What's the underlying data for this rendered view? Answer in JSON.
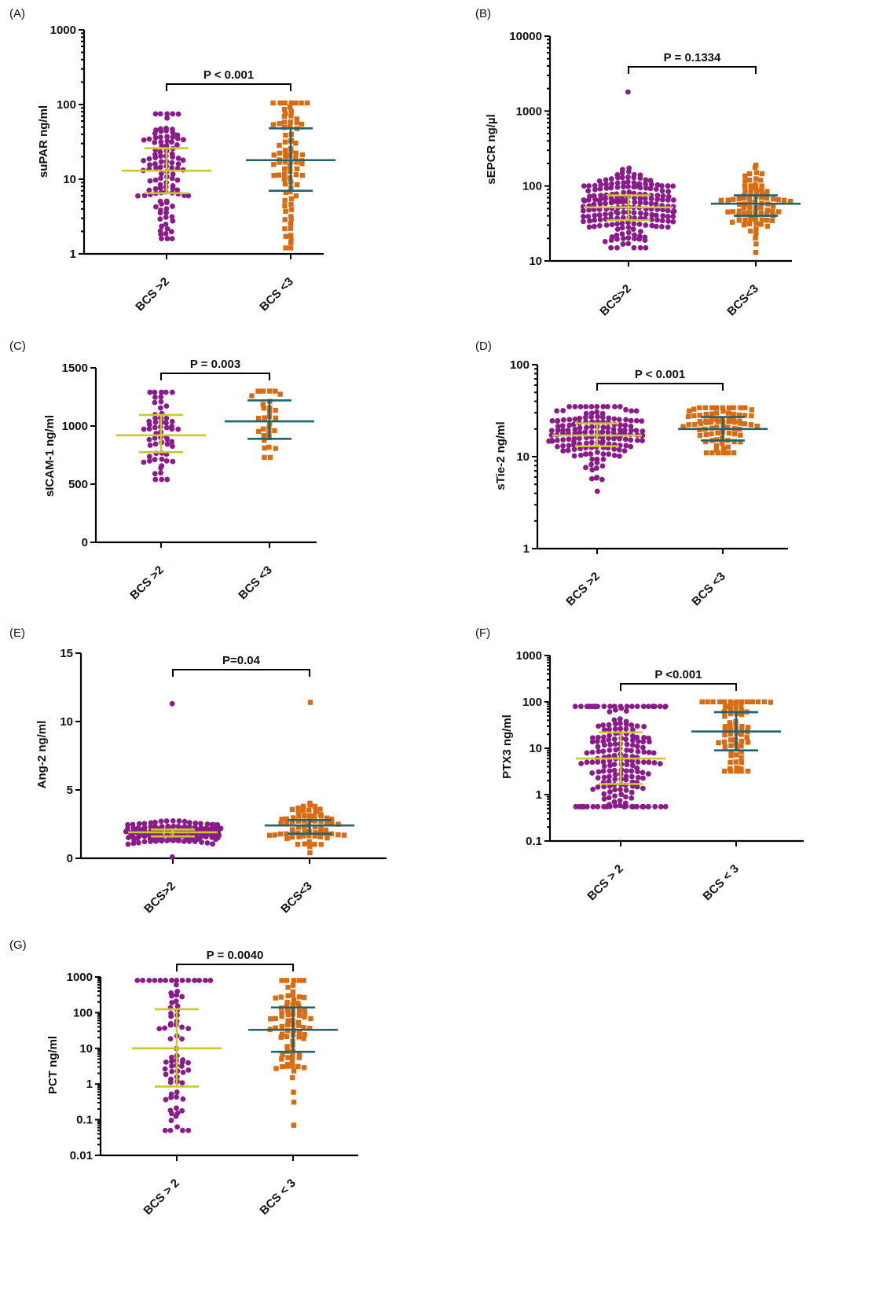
{
  "chart_data": [
    {
      "type": "scatter",
      "panel": "(A)",
      "ylabel": "suPAR ng/ml",
      "scale": "log",
      "ylim": [
        1,
        1000
      ],
      "ticks": [
        1,
        10,
        100,
        1000
      ],
      "tick_labels": [
        "1",
        "10",
        "100",
        "1000"
      ],
      "categories": [
        "BCS >2",
        "BCS <3"
      ],
      "pvalue": "P < 0.001",
      "series": [
        {
          "name": "BCS >2",
          "color": "#8b1a8b",
          "marker": "circle",
          "n": 110,
          "median": 13,
          "q1": 6.5,
          "q3": 26,
          "min": 1.6,
          "max": 75
        },
        {
          "name": "BCS <3",
          "color": "#d96c12",
          "marker": "square",
          "n": 85,
          "median": 18,
          "q1": 7,
          "q3": 48,
          "min": 1.2,
          "max": 105
        }
      ]
    },
    {
      "type": "scatter",
      "panel": "(B)",
      "ylabel": "sEPCR ng/µl",
      "scale": "log",
      "ylim": [
        10,
        10000
      ],
      "ticks": [
        10,
        100,
        1000,
        10000
      ],
      "tick_labels": [
        "10",
        "100",
        "1000",
        "10000"
      ],
      "categories": [
        "BCS>2",
        "BCS<3"
      ],
      "pvalue": "P = 0.1334",
      "series": [
        {
          "name": "BCS>2",
          "color": "#8b1a8b",
          "marker": "circle",
          "n": 200,
          "median": 52,
          "q1": 35,
          "q3": 75,
          "min": 15,
          "max": 1800
        },
        {
          "name": "BCS<3",
          "color": "#d96c12",
          "marker": "square",
          "n": 80,
          "median": 58,
          "q1": 40,
          "q3": 75,
          "min": 13,
          "max": 190
        }
      ]
    },
    {
      "type": "scatter",
      "panel": "(C)",
      "ylabel": "sICAM-1 ng/ml",
      "scale": "linear",
      "ylim": [
        0,
        1500
      ],
      "ticks": [
        0,
        500,
        1000,
        1500
      ],
      "tick_labels": [
        "0",
        "500",
        "1000",
        "1500"
      ],
      "categories": [
        "BCS >2",
        "BCS <3"
      ],
      "pvalue": "P = 0.003",
      "series": [
        {
          "name": "BCS >2",
          "color": "#8b1a8b",
          "marker": "circle",
          "n": 60,
          "median": 920,
          "q1": 775,
          "q3": 1095,
          "min": 540,
          "max": 1290
        },
        {
          "name": "BCS <3",
          "color": "#d96c12",
          "marker": "square",
          "n": 30,
          "median": 1040,
          "q1": 890,
          "q3": 1220,
          "min": 730,
          "max": 1300
        }
      ]
    },
    {
      "type": "scatter",
      "panel": "(D)",
      "ylabel": "sTie-2 ng/ml",
      "scale": "log",
      "ylim": [
        1,
        100
      ],
      "ticks": [
        1,
        10,
        100
      ],
      "tick_labels": [
        "1",
        "10",
        "100"
      ],
      "categories": [
        "BCS >2",
        "BCS <3"
      ],
      "pvalue": "P < 0.001",
      "series": [
        {
          "name": "BCS >2",
          "color": "#8b1a8b",
          "marker": "circle",
          "n": 160,
          "median": 17,
          "q1": 13,
          "q3": 23,
          "min": 4.2,
          "max": 35
        },
        {
          "name": "BCS <3",
          "color": "#d96c12",
          "marker": "square",
          "n": 80,
          "median": 20,
          "q1": 15,
          "q3": 27,
          "min": 11,
          "max": 34
        }
      ]
    },
    {
      "type": "scatter",
      "panel": "(E)",
      "ylabel": "Ang-2 ng/ml",
      "scale": "linear",
      "ylim": [
        0,
        15
      ],
      "ticks": [
        0,
        5,
        10,
        15
      ],
      "tick_labels": [
        "0",
        "5",
        "10",
        "15"
      ],
      "categories": [
        "BCS>2",
        "BCS<3"
      ],
      "pvalue": "P=0.04",
      "series": [
        {
          "name": "BCS>2",
          "color": "#8b1a8b",
          "marker": "circle",
          "n": 170,
          "median": 1.9,
          "q1": 1.6,
          "q3": 2.1,
          "min": 0.1,
          "max": 11.3
        },
        {
          "name": "BCS<3",
          "color": "#d96c12",
          "marker": "square",
          "n": 70,
          "median": 2.4,
          "q1": 1.8,
          "q3": 2.8,
          "min": 0.4,
          "max": 11.4
        }
      ]
    },
    {
      "type": "scatter",
      "panel": "(F)",
      "ylabel": "PTX3 ng/ml",
      "scale": "log",
      "ylim": [
        0.1,
        1000
      ],
      "ticks": [
        0.1,
        1,
        10,
        100,
        1000
      ],
      "tick_labels": [
        "0.1",
        "1",
        "10",
        "100",
        "1000"
      ],
      "categories": [
        "BCS > 2",
        "BCS < 3"
      ],
      "pvalue": "P <0.001",
      "series": [
        {
          "name": "BCS > 2",
          "color": "#8b1a8b",
          "marker": "circle",
          "n": 200,
          "median": 6,
          "q1": 1.7,
          "q3": 22,
          "min": 0.55,
          "max": 80
        },
        {
          "name": "BCS < 3",
          "color": "#d96c12",
          "marker": "square",
          "n": 70,
          "median": 23,
          "q1": 9,
          "q3": 60,
          "min": 3.2,
          "max": 100
        }
      ]
    },
    {
      "type": "scatter",
      "panel": "(G)",
      "ylabel": "PCT ng/ml",
      "scale": "log",
      "ylim": [
        0.01,
        1000
      ],
      "ticks": [
        0.01,
        0.1,
        1,
        10,
        100,
        1000
      ],
      "tick_labels": [
        "0.01",
        "0.1",
        "1",
        "10",
        "100",
        "1000"
      ],
      "categories": [
        "BCS > 2",
        "BCS < 3"
      ],
      "pvalue": "P = 0.0040",
      "series": [
        {
          "name": "BCS > 2",
          "color": "#8b1a8b",
          "marker": "circle",
          "n": 80,
          "median": 10,
          "q1": 0.85,
          "q3": 125,
          "min": 0.05,
          "max": 800
        },
        {
          "name": "BCS < 3",
          "color": "#d96c12",
          "marker": "square",
          "n": 80,
          "median": 33,
          "q1": 8,
          "q3": 140,
          "min": 0.07,
          "max": 800
        }
      ]
    }
  ]
}
